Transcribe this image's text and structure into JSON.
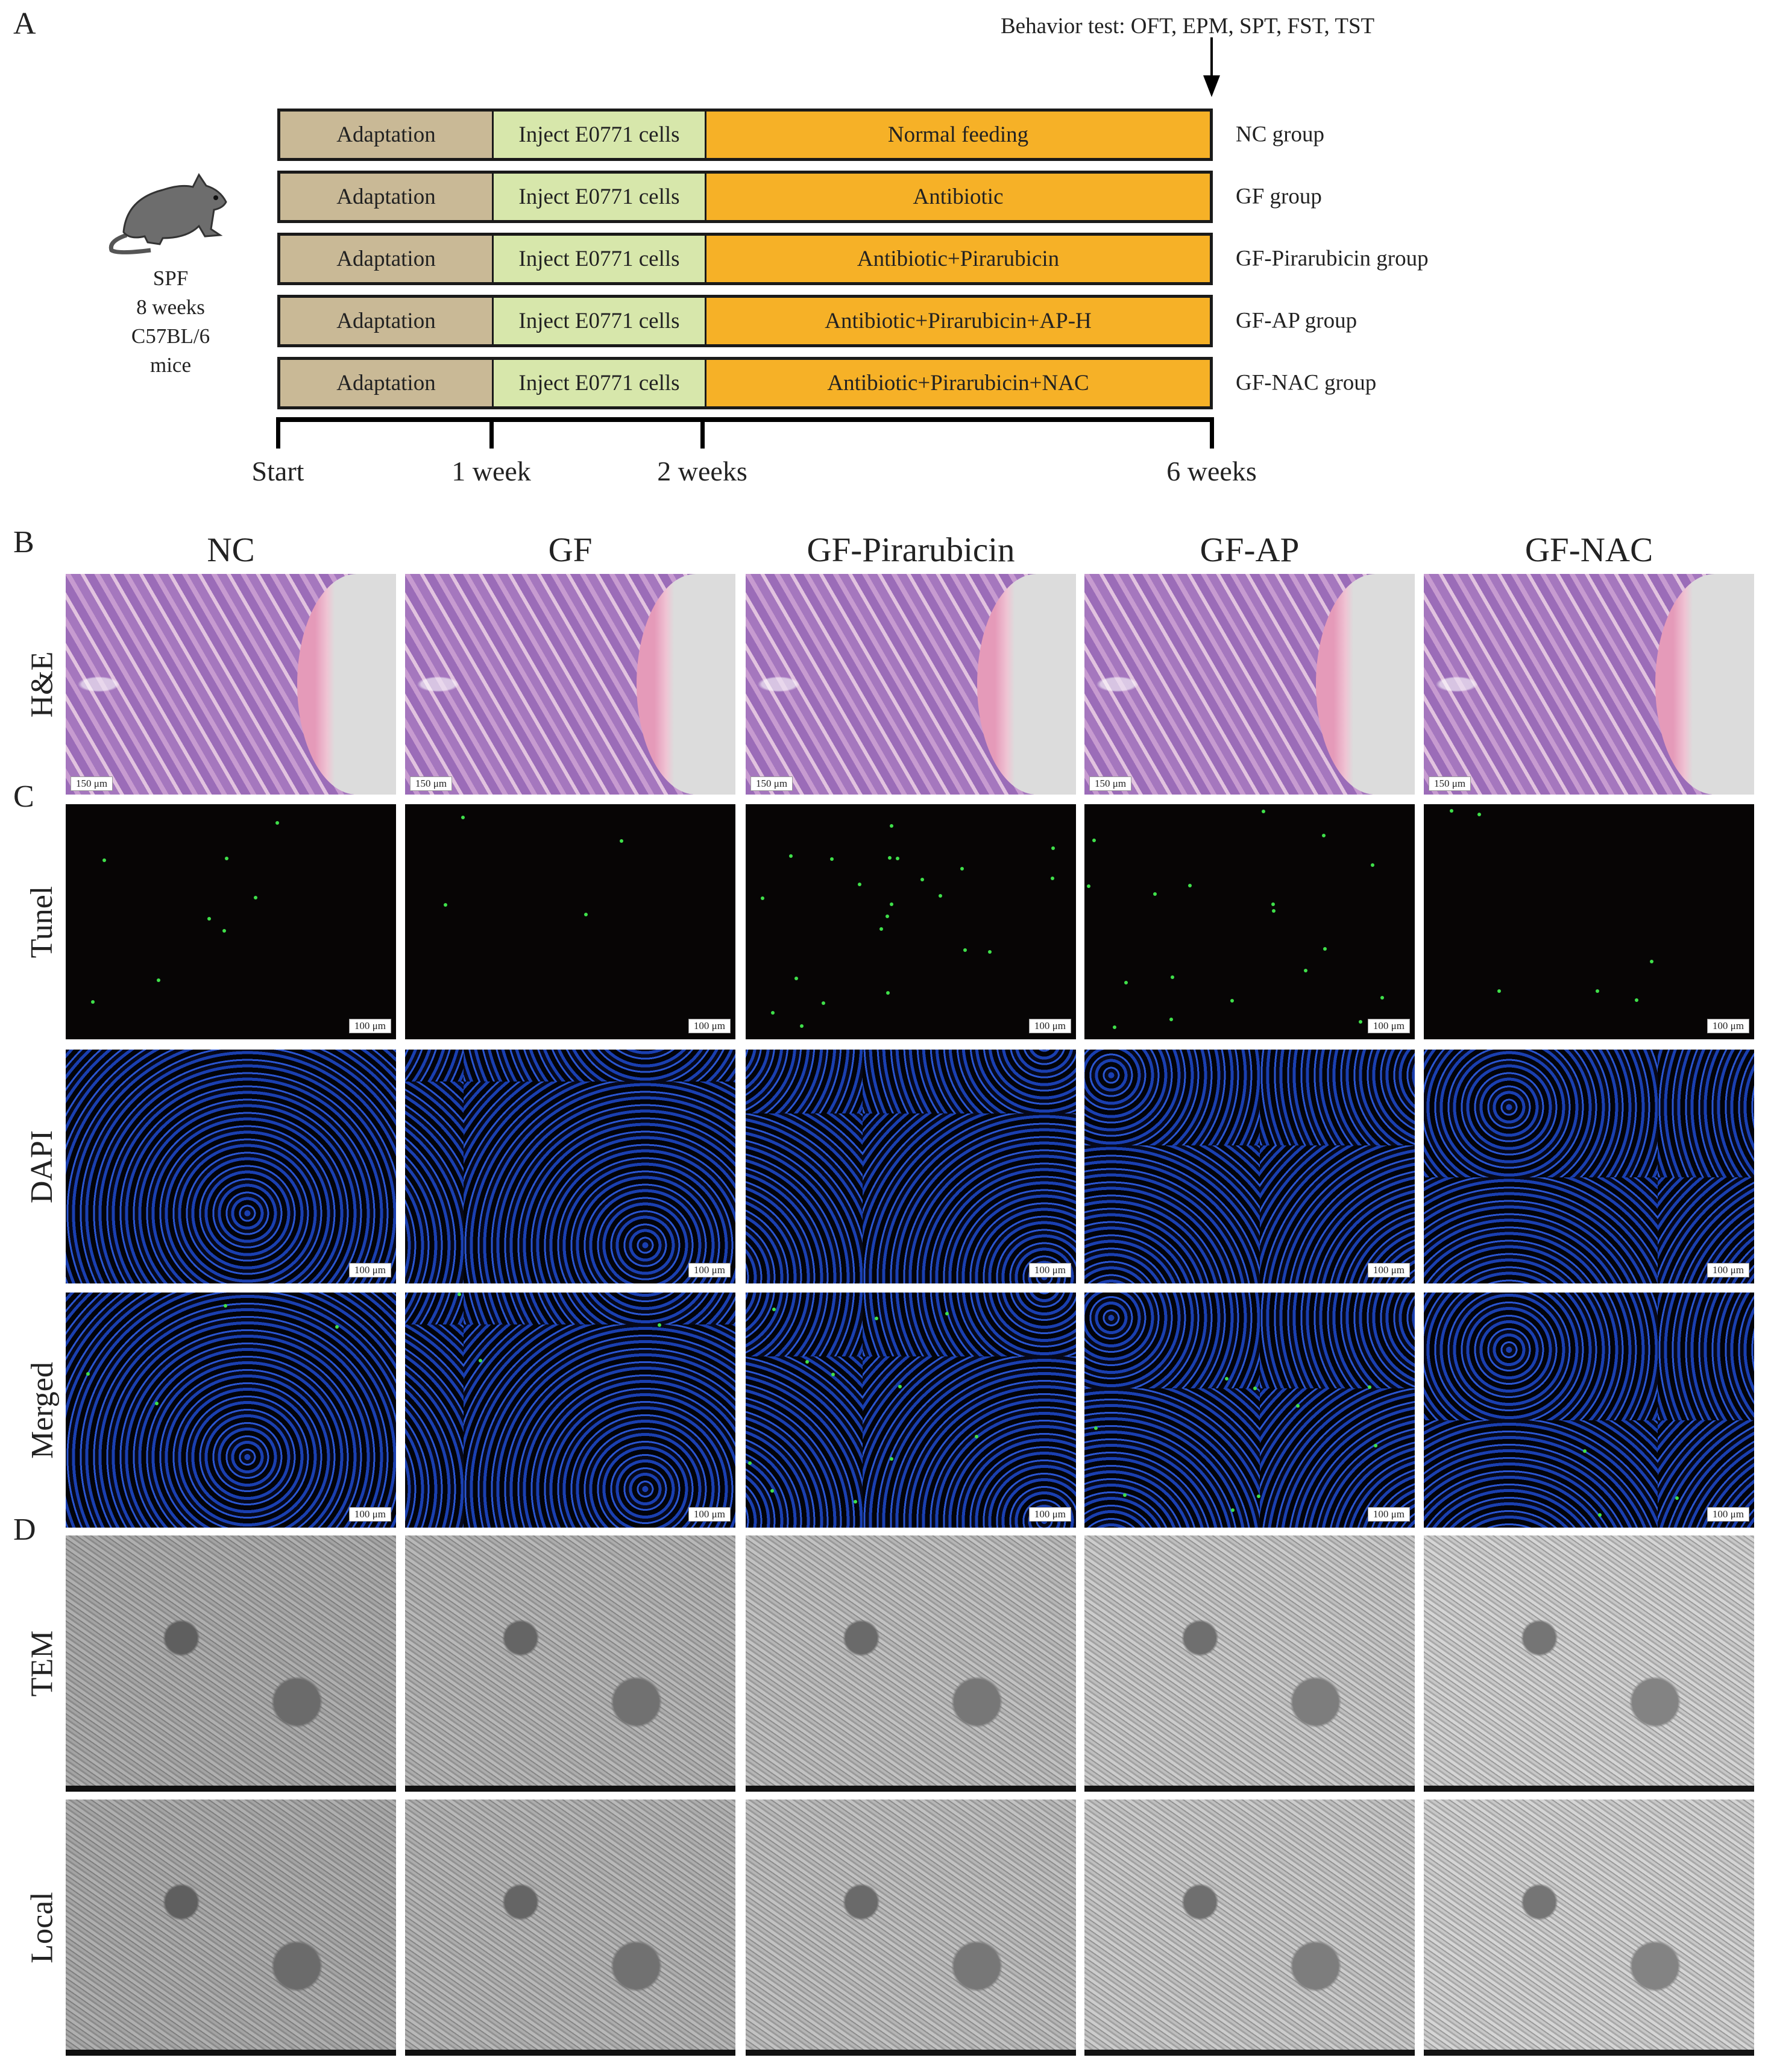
{
  "panel_letters": {
    "a": "A",
    "b": "B",
    "c": "C",
    "d": "D"
  },
  "timeline": {
    "behavior_test": "Behavior test: OFT, EPM, SPT, FST, TST",
    "mouse": {
      "line1": "SPF",
      "line2": "8 weeks",
      "line3": "C57BL/6 mice"
    },
    "rows": [
      {
        "adaptation": "Adaptation",
        "inject": "Inject E0771 cells",
        "treatment": "Normal feeding",
        "group": "NC group"
      },
      {
        "adaptation": "Adaptation",
        "inject": "Inject E0771 cells",
        "treatment": "Antibiotic",
        "group": "GF group"
      },
      {
        "adaptation": "Adaptation",
        "inject": "Inject E0771 cells",
        "treatment": "Antibiotic+Pirarubicin",
        "group": "GF-Pirarubicin group"
      },
      {
        "adaptation": "Adaptation",
        "inject": "Inject E0771 cells",
        "treatment": "Antibiotic+Pirarubicin+AP-H",
        "group": "GF-AP group"
      },
      {
        "adaptation": "Adaptation",
        "inject": "Inject E0771 cells",
        "treatment": "Antibiotic+Pirarubicin+NAC",
        "group": "GF-NAC group"
      }
    ],
    "ticks": [
      "Start",
      "1 week",
      "2 weeks",
      "6 weeks"
    ],
    "colors": {
      "adaptation": "#c9b996",
      "inject": "#d7e7ab",
      "treatment": "#f6b127"
    }
  },
  "columns": [
    "NC",
    "GF",
    "GF-Pirarubicin",
    "GF-AP",
    "GF-NAC"
  ],
  "rows": {
    "he": {
      "label": "H&E",
      "scale": "150 μm"
    },
    "tunel": {
      "label": "Tunel",
      "scale": "100 μm"
    },
    "dapi": {
      "label": "DAPI",
      "scale": "100 μm"
    },
    "merged": {
      "label": "Merged",
      "scale": "100 μm"
    },
    "tem": {
      "label": "TEM"
    },
    "local": {
      "label": "Local"
    }
  }
}
